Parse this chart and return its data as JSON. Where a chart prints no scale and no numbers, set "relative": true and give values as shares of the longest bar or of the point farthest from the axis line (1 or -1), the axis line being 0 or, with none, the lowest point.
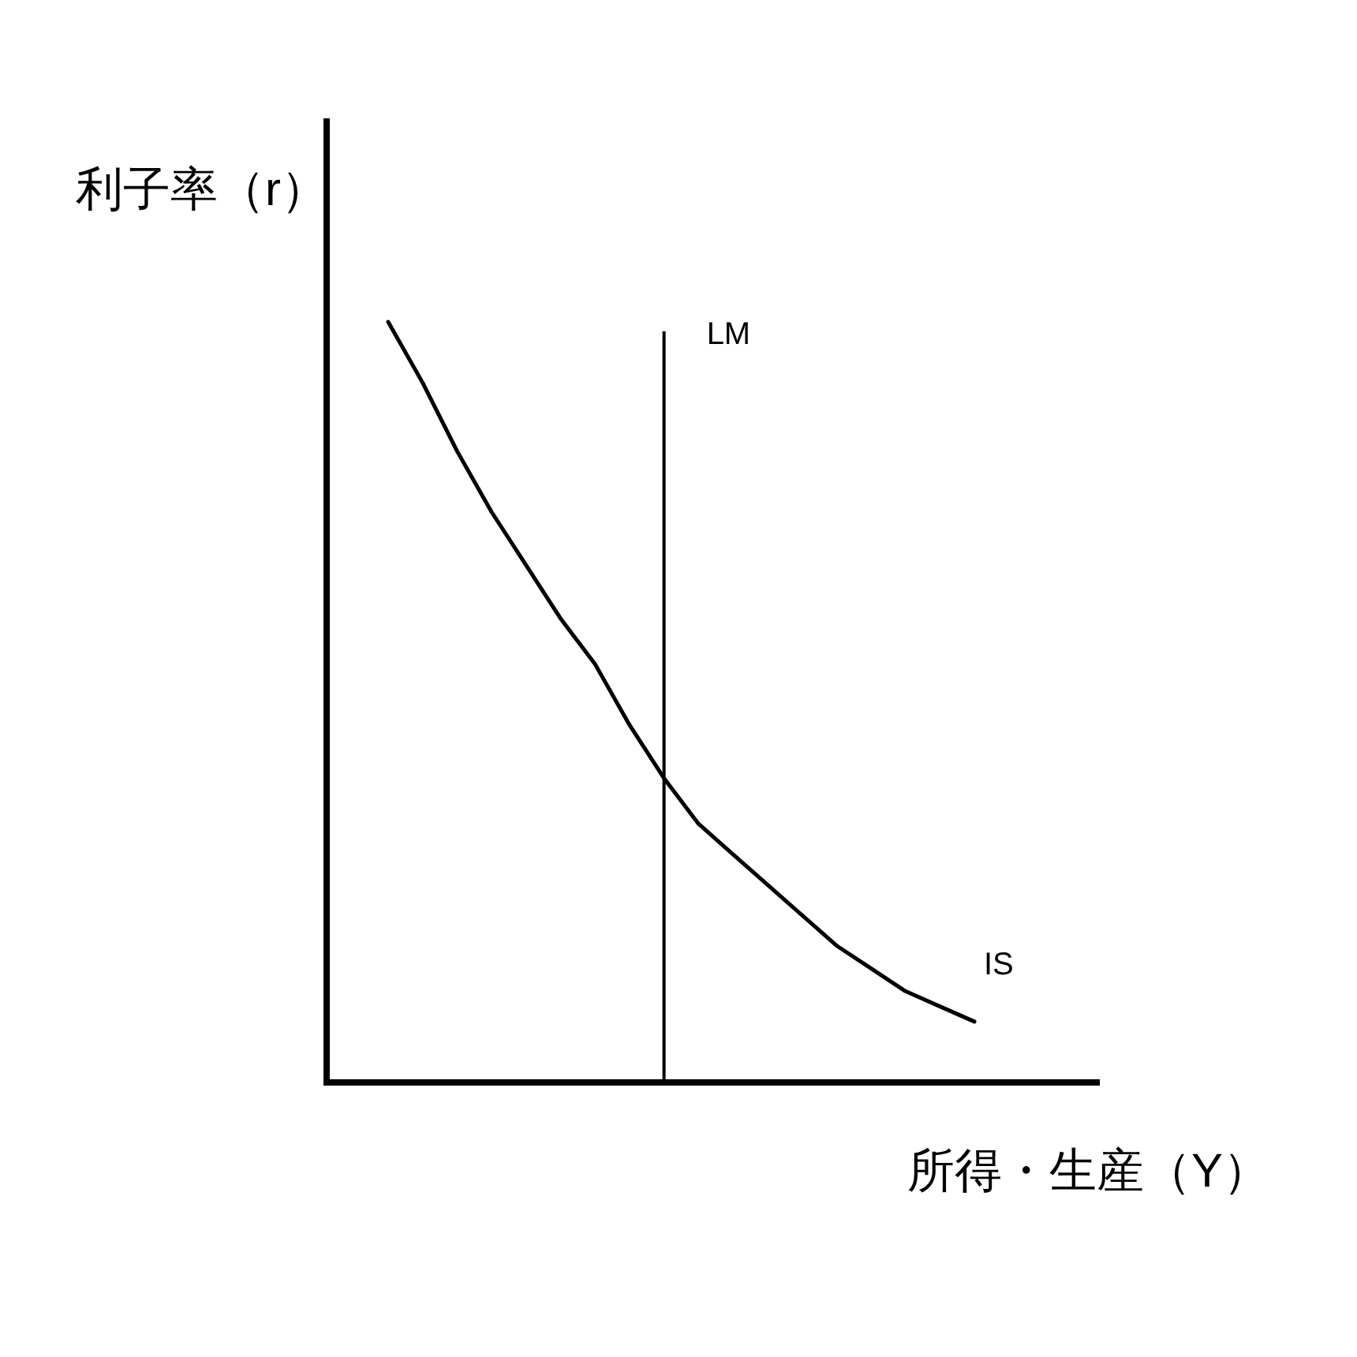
{
  "chart_data": {
    "type": "line",
    "relative": true,
    "xlabel": "所得・生産（Y）",
    "ylabel": "利子率（r）",
    "marker": "none",
    "line_style": "solid",
    "categories": [
      null,
      null,
      null,
      null,
      null,
      null,
      null,
      null,
      null,
      null,
      null,
      null,
      null,
      null,
      null,
      null,
      null,
      null
    ],
    "series": [
      {
        "name": "IS",
        "color": "#000000",
        "values": [
          1,
          0.92,
          0.83,
          0.75,
          0.68,
          0.61,
          0.55,
          0.47,
          0.4,
          0.34,
          0.3,
          0.26,
          0.22,
          0.18,
          0.15,
          0.12,
          0.1,
          0.08
        ]
      }
    ],
    "annotations": [
      "LM"
    ]
  }
}
